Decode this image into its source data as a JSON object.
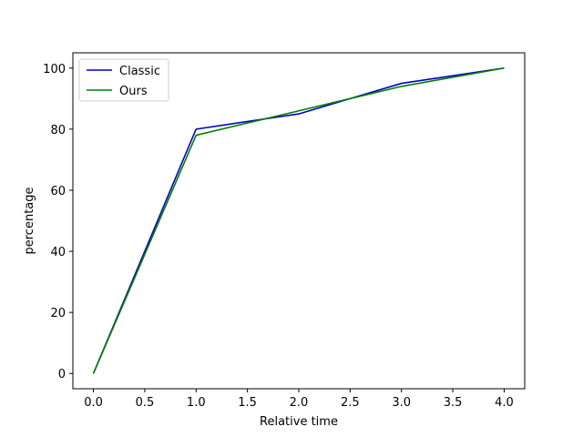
{
  "chart_data": {
    "type": "line",
    "title": "",
    "xlabel": "Relative time",
    "ylabel": "percentage",
    "xlim": [
      -0.2,
      4.2
    ],
    "ylim": [
      -5,
      105
    ],
    "xticks": [
      0.0,
      0.5,
      1.0,
      1.5,
      2.0,
      2.5,
      3.0,
      3.5,
      4.0
    ],
    "xtick_labels": [
      "0.0",
      "0.5",
      "1.0",
      "1.5",
      "2.0",
      "2.5",
      "3.0",
      "3.5",
      "4.0"
    ],
    "yticks": [
      0,
      20,
      40,
      60,
      80,
      100
    ],
    "ytick_labels": [
      "0",
      "20",
      "40",
      "60",
      "80",
      "100"
    ],
    "grid": false,
    "legend": "top-left",
    "series": [
      {
        "name": "Classic",
        "color": "#0000cc",
        "x": [
          0,
          1,
          2,
          3,
          4
        ],
        "y": [
          0,
          80,
          85,
          95,
          100
        ]
      },
      {
        "name": "Ours",
        "color": "#008000",
        "x": [
          0,
          1,
          2,
          3,
          4
        ],
        "y": [
          0,
          78,
          86,
          94,
          100
        ]
      }
    ]
  }
}
